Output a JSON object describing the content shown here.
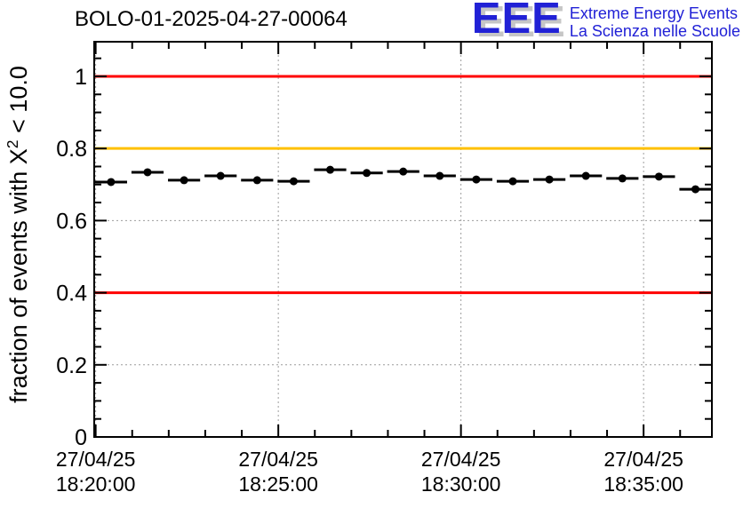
{
  "header": {
    "logo": {
      "acronym": "EEE",
      "line1": "Extreme Energy Events",
      "line2": "La Scienza nelle Scuole",
      "blue": "#2121d6",
      "shadow": "#c6c6c6"
    }
  },
  "chart_data": {
    "type": "scatter",
    "title": "BOLO-01-2025-04-27-00064",
    "ylabel": "fraction of events with X^2 < 10.0",
    "ylabel_parts": {
      "prefix": "fraction of events with X",
      "sup": "2",
      "suffix": " < 10.0"
    },
    "xlabel": "",
    "ylim": [
      0,
      1.096
    ],
    "xlim_minutes": [
      -0.04,
      16.87
    ],
    "grid": "dotted gray at major ticks",
    "colors": {
      "marker": "#000000",
      "grid": "#9c9c9c",
      "frame": "#000000",
      "red_line": "#ff0000",
      "orange_line": "#ffc000"
    },
    "y_major_ticks": [
      0,
      0.2,
      0.4,
      0.6,
      0.8,
      1.0
    ],
    "ytick_labels": [
      "0",
      "0.2",
      "0.4",
      "0.6",
      "0.8",
      "1"
    ],
    "y_minor_step": 0.05,
    "x_major_ticks_minutes": [
      0,
      5,
      10,
      15
    ],
    "x_minor_step_minutes": 1,
    "xtick_labels": [
      {
        "date": "27/04/25",
        "time": "18:20:00"
      },
      {
        "date": "27/04/25",
        "time": "18:25:00"
      },
      {
        "date": "27/04/25",
        "time": "18:30:00"
      },
      {
        "date": "27/04/25",
        "time": "18:35:00"
      }
    ],
    "reference_lines": [
      {
        "y": 1.0,
        "color": "#ff0000"
      },
      {
        "y": 0.8,
        "color": "#ffc000"
      },
      {
        "y": 0.4,
        "color": "#ff0000"
      }
    ],
    "series": [
      {
        "name": "fraction of events with chi2 < 10 per minute",
        "marker": "filled-circle",
        "color": "#000000",
        "xerr_minutes": 0.44,
        "x_minutes": [
          0.42,
          1.42,
          2.42,
          3.42,
          4.42,
          5.42,
          6.42,
          7.42,
          8.42,
          9.42,
          10.42,
          11.42,
          12.42,
          13.42,
          14.42,
          15.42,
          16.42
        ],
        "y": [
          0.707,
          0.734,
          0.712,
          0.724,
          0.712,
          0.709,
          0.741,
          0.732,
          0.736,
          0.724,
          0.714,
          0.709,
          0.714,
          0.724,
          0.717,
          0.722,
          0.687
        ]
      }
    ]
  }
}
